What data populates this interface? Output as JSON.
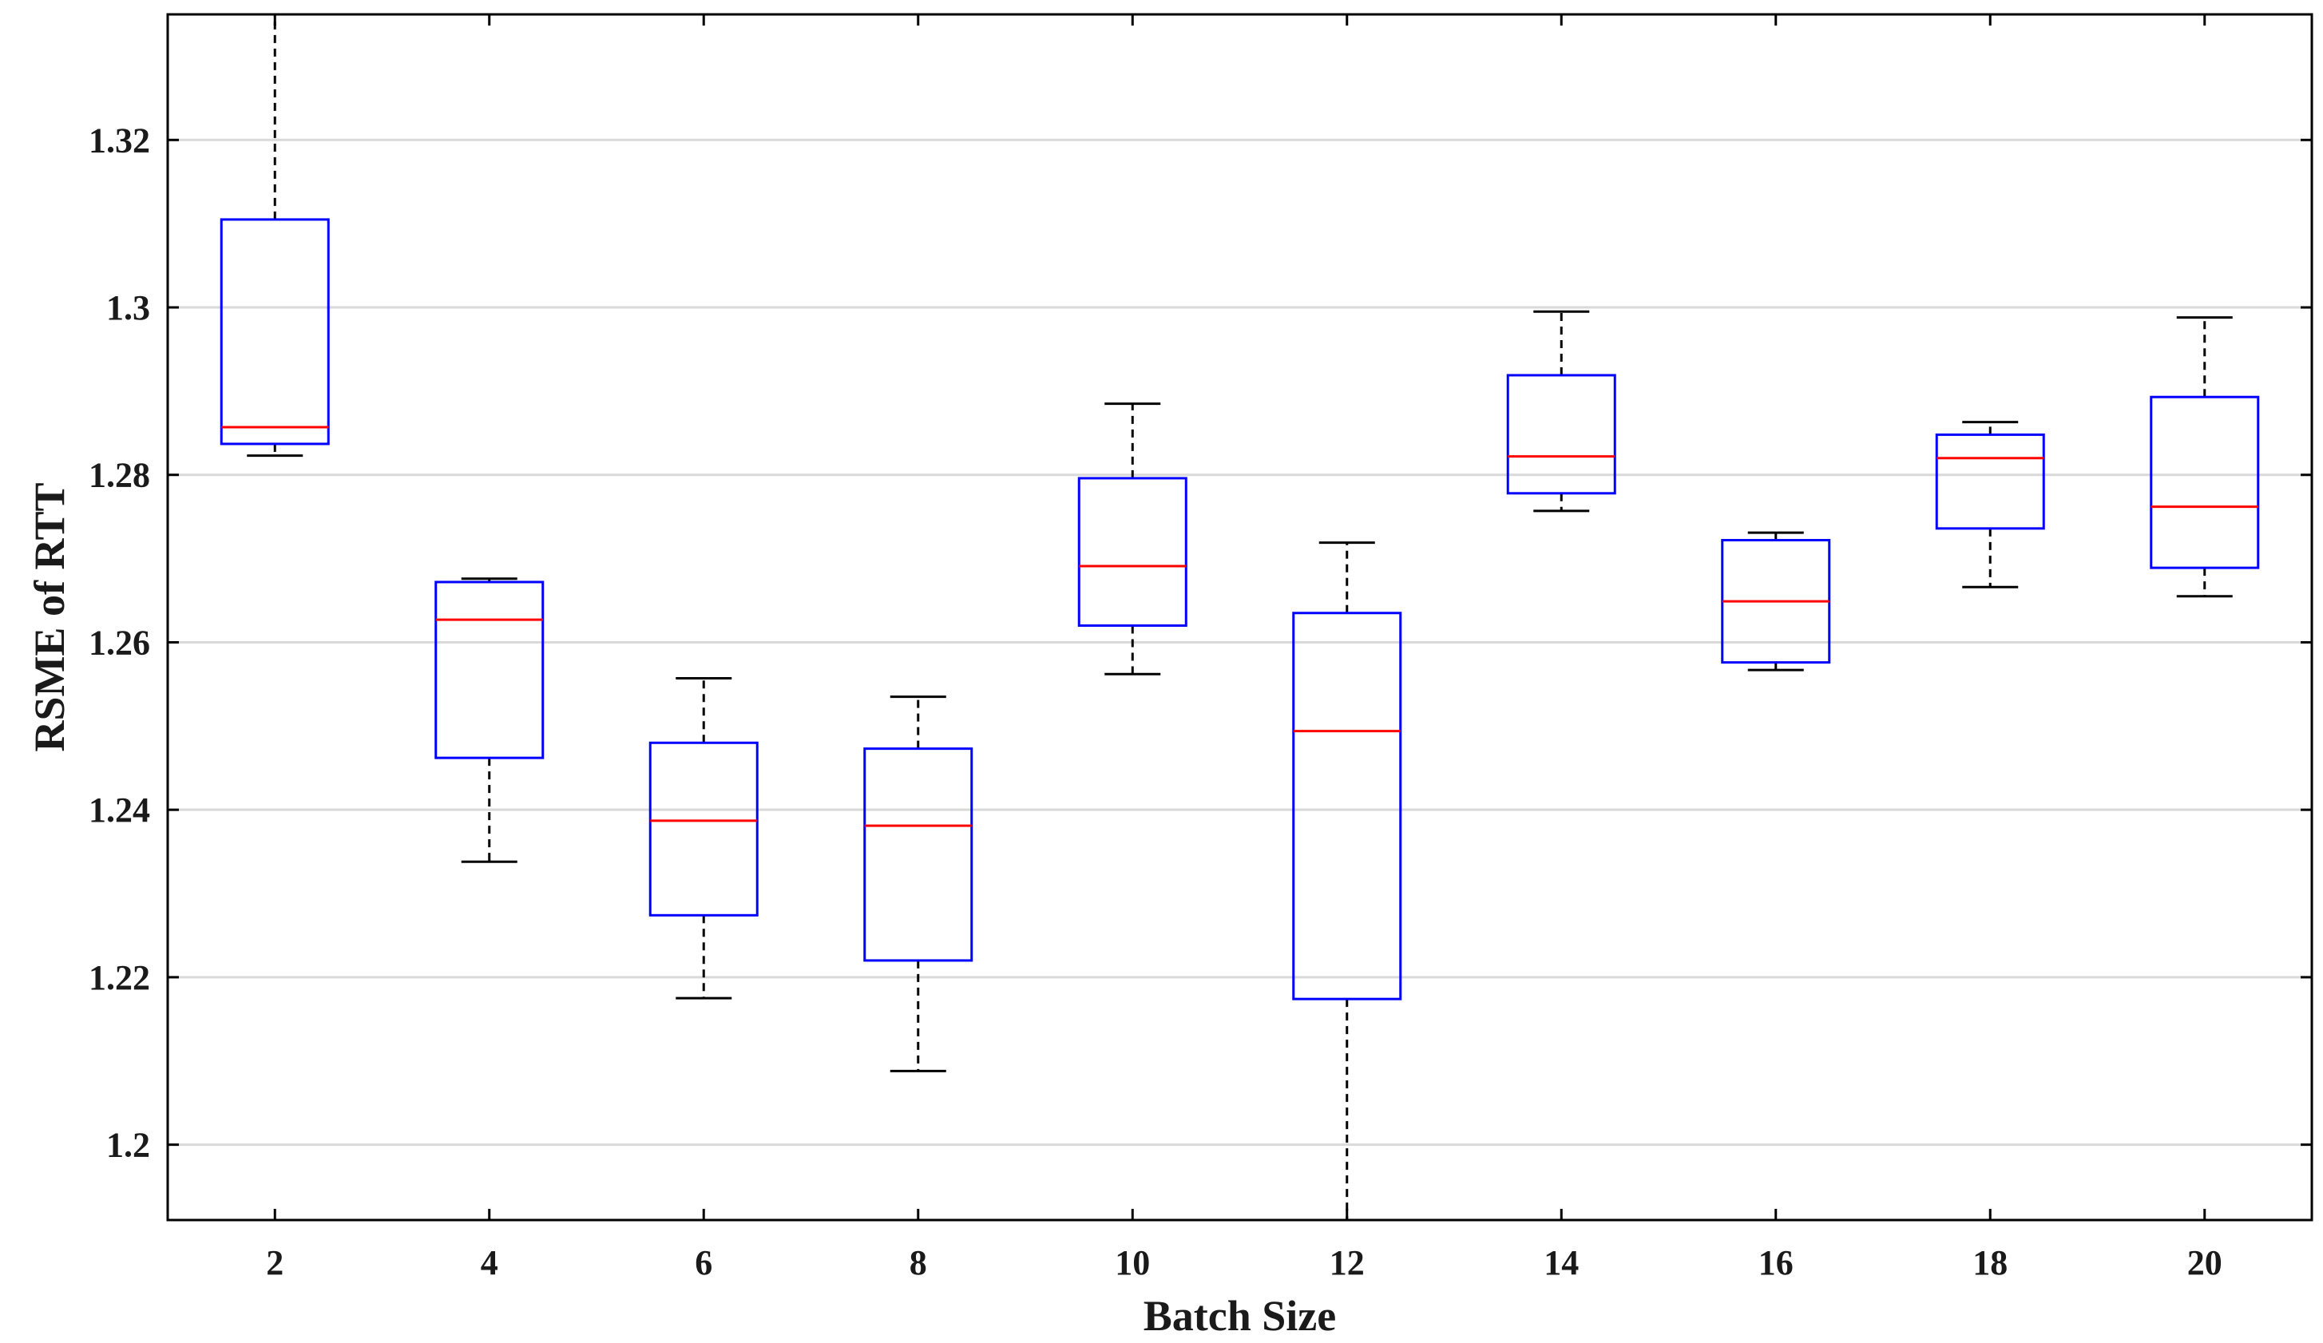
{
  "chart_data": {
    "type": "boxplot",
    "title": "",
    "xlabel": "Batch Size",
    "ylabel": "RSME of RTT",
    "ylim": [
      1.191,
      1.335
    ],
    "yticks": [
      1.2,
      1.22,
      1.24,
      1.26,
      1.28,
      1.3,
      1.32
    ],
    "ytick_labels": [
      "1.2",
      "1.22",
      "1.24",
      "1.26",
      "1.28",
      "1.3",
      "1.32"
    ],
    "grid": "horizontal",
    "colors": {
      "box": "#0000ff",
      "median": "#ff0000",
      "whisker": "#000000",
      "grid": "#d9d9d9",
      "axis": "#000000"
    },
    "categories": [
      "2",
      "4",
      "6",
      "8",
      "10",
      "12",
      "14",
      "16",
      "18",
      "20"
    ],
    "boxes": [
      {
        "label": "2",
        "whisker_low": 1.2823,
        "q1": 1.2837,
        "median": 1.2857,
        "q3": 1.3105,
        "whisker_high": 1.335
      },
      {
        "label": "4",
        "whisker_low": 1.2338,
        "q1": 1.2462,
        "median": 1.2627,
        "q3": 1.2672,
        "whisker_high": 1.2676
      },
      {
        "label": "6",
        "whisker_low": 1.2175,
        "q1": 1.2274,
        "median": 1.2387,
        "q3": 1.248,
        "whisker_high": 1.2557
      },
      {
        "label": "8",
        "whisker_low": 1.2088,
        "q1": 1.222,
        "median": 1.2381,
        "q3": 1.2473,
        "whisker_high": 1.2535
      },
      {
        "label": "10",
        "whisker_low": 1.2562,
        "q1": 1.262,
        "median": 1.2691,
        "q3": 1.2796,
        "whisker_high": 1.2885
      },
      {
        "label": "12",
        "whisker_low": 1.191,
        "q1": 1.2174,
        "median": 1.2494,
        "q3": 1.2635,
        "whisker_high": 1.2719
      },
      {
        "label": "14",
        "whisker_low": 1.2757,
        "q1": 1.2778,
        "median": 1.2822,
        "q3": 1.2919,
        "whisker_high": 1.2995
      },
      {
        "label": "16",
        "whisker_low": 1.2567,
        "q1": 1.2576,
        "median": 1.2649,
        "q3": 1.2722,
        "whisker_high": 1.2731
      },
      {
        "label": "18",
        "whisker_low": 1.2666,
        "q1": 1.2736,
        "median": 1.282,
        "q3": 1.2848,
        "whisker_high": 1.2863
      },
      {
        "label": "20",
        "whisker_low": 1.2655,
        "q1": 1.2689,
        "median": 1.2762,
        "q3": 1.2893,
        "whisker_high": 1.2988
      }
    ]
  }
}
